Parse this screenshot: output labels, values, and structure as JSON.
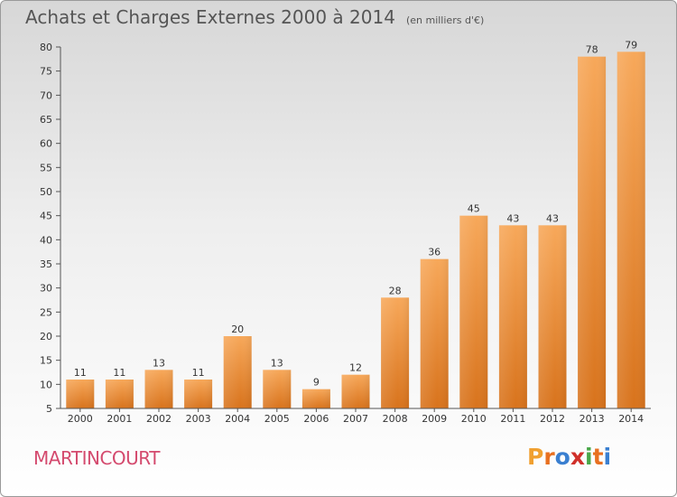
{
  "title": "Achats et Charges Externes 2000 à 2014",
  "subtitle": "(en milliers d'€)",
  "commune": "MARTINCOURT",
  "logo": {
    "letters": [
      "P",
      "r",
      "o",
      "x",
      "i",
      "t",
      "i"
    ],
    "colors": [
      "#f0a030",
      "#e87020",
      "#3a7fd0",
      "#d0302a",
      "#4aa84a",
      "#e87020",
      "#3a7fd0"
    ]
  },
  "colors": {
    "bar_light": "#f7a85a",
    "bar_dark": "#d8731c",
    "commune": "#d44a6e"
  },
  "chart_data": {
    "type": "bar",
    "title": "Achats et Charges Externes 2000 à 2014",
    "subtitle": "(en milliers d'€)",
    "xlabel": "",
    "ylabel": "",
    "categories": [
      "2000",
      "2001",
      "2002",
      "2003",
      "2004",
      "2005",
      "2006",
      "2007",
      "2008",
      "2009",
      "2010",
      "2011",
      "2012",
      "2013",
      "2014"
    ],
    "values": [
      11,
      11,
      13,
      11,
      20,
      13,
      9,
      12,
      28,
      36,
      45,
      43,
      43,
      78,
      79
    ],
    "ylim": [
      5,
      80
    ],
    "yticks": [
      5,
      10,
      15,
      20,
      25,
      30,
      35,
      40,
      45,
      50,
      55,
      60,
      65,
      70,
      75,
      80
    ],
    "grid": false,
    "legend": "none"
  }
}
